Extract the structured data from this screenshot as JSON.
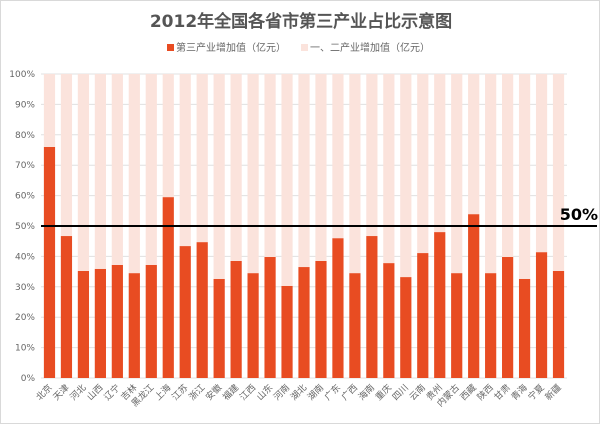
{
  "chart_data": {
    "type": "bar",
    "stacked": true,
    "title": "2012年全国各省市第三产业占比示意图",
    "categories": [
      "北京",
      "天津",
      "河北",
      "山西",
      "辽宁",
      "吉林",
      "黑龙江",
      "上海",
      "江苏",
      "浙江",
      "安徽",
      "福建",
      "江西",
      "山东",
      "河南",
      "湖北",
      "湖南",
      "广东",
      "广西",
      "海南",
      "重庆",
      "四川",
      "云南",
      "贵州",
      "内蒙古",
      "西藏",
      "陕西",
      "甘肃",
      "青海",
      "宁夏",
      "新疆"
    ],
    "series": [
      {
        "name": "第三产业增加值（亿元）",
        "color": "#e84c22",
        "values": [
          76,
          46.7,
          35.2,
          35.9,
          37.2,
          34.5,
          37.2,
          59.5,
          43.4,
          44.7,
          32.6,
          38.5,
          34.5,
          39.8,
          30.3,
          36.5,
          38.5,
          46,
          34.5,
          46.7,
          37.8,
          33.2,
          41.1,
          48,
          34.5,
          53.9,
          34.5,
          39.8,
          32.6,
          41.4,
          35.2
        ]
      },
      {
        "name": "一、二产业增加值（亿元）",
        "color": "#fbe3dc",
        "values": [
          24,
          53.3,
          64.8,
          64.1,
          62.8,
          65.5,
          62.8,
          40.5,
          56.6,
          55.3,
          67.4,
          61.5,
          65.5,
          60.2,
          69.7,
          63.5,
          61.5,
          54,
          65.5,
          53.3,
          62.2,
          66.8,
          58.9,
          52,
          65.5,
          46.1,
          65.5,
          60.2,
          67.4,
          58.6,
          64.8
        ]
      }
    ],
    "ylim": [
      0,
      100
    ],
    "yticks": [
      "0%",
      "10%",
      "20%",
      "30%",
      "40%",
      "50%",
      "60%",
      "70%",
      "80%",
      "90%",
      "100%"
    ],
    "legend": "top",
    "reference_line": {
      "value": 50,
      "label": "50%"
    }
  }
}
